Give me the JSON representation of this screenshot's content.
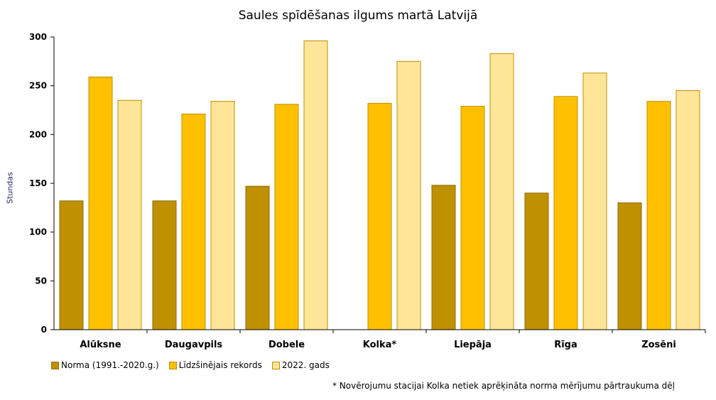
{
  "chart_data": {
    "type": "bar",
    "title": "Saules spīdēšanas ilgums martā Latvijā",
    "ylabel": "Stundas",
    "xlabel": "",
    "ylim": [
      0,
      300
    ],
    "yticks": [
      0,
      50,
      100,
      150,
      200,
      250,
      300
    ],
    "grid": false,
    "legend_position": "bottom-left",
    "categories": [
      "Alūksne",
      "Daugavpils",
      "Dobele",
      "Kolka*",
      "Liepāja",
      "Rīga",
      "Zosēni"
    ],
    "series": [
      {
        "name": "Norma (1991.-2020.g.)",
        "color": "#bf9000",
        "values": [
          132,
          132,
          147,
          null,
          148,
          140,
          130
        ]
      },
      {
        "name": "Līdzšinējais rekords",
        "color": "#ffc000",
        "values": [
          259,
          221,
          231,
          232,
          229,
          239,
          234
        ]
      },
      {
        "name": "2022. gads",
        "color": "#ffe699",
        "values": [
          235,
          234,
          296,
          275,
          283,
          263,
          245
        ]
      }
    ],
    "footnote": "* Novērojumu stacijai Kolka netiek aprēķināta norma mērījumu  pārtraukuma dēļ"
  }
}
